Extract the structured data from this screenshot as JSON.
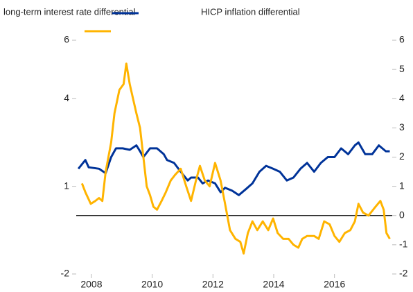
{
  "chart_data": {
    "type": "line",
    "legend_position": "top",
    "xlim": [
      2007.5,
      2017.9
    ],
    "xticks": [
      2008,
      2010,
      2012,
      2014,
      2016
    ],
    "ylim": [
      -2,
      6
    ],
    "yticks": [
      -2,
      1,
      4,
      6
    ],
    "y2lim": [
      -2,
      6
    ],
    "y2ticks": [
      -2,
      -1,
      0,
      1,
      2,
      3,
      4,
      5,
      6
    ],
    "series": [
      {
        "name": "long-term interest rate differential",
        "color": "#003399",
        "axis": "y",
        "x": [
          2007.57,
          2007.8,
          2007.91,
          2008.25,
          2008.47,
          2008.65,
          2008.81,
          2009.03,
          2009.26,
          2009.48,
          2009.6,
          2009.71,
          2009.93,
          2010.16,
          2010.38,
          2010.49,
          2010.72,
          2010.94,
          2011.17,
          2011.28,
          2011.51,
          2011.66,
          2011.84,
          2012.07,
          2012.25,
          2012.4,
          2012.63,
          2012.85,
          2013.08,
          2013.3,
          2013.53,
          2013.75,
          2013.98,
          2014.2,
          2014.43,
          2014.65,
          2014.88,
          2015.1,
          2015.33,
          2015.55,
          2015.78,
          2016.0,
          2016.22,
          2016.45,
          2016.67,
          2016.79,
          2017.01,
          2017.24,
          2017.46,
          2017.69,
          2017.82
        ],
        "values": [
          1.6,
          1.9,
          1.65,
          1.6,
          1.45,
          2.0,
          2.3,
          2.3,
          2.25,
          2.4,
          2.2,
          2.0,
          2.3,
          2.3,
          2.1,
          1.9,
          1.8,
          1.5,
          1.2,
          1.3,
          1.3,
          1.1,
          1.2,
          1.1,
          0.8,
          0.95,
          0.85,
          0.7,
          0.9,
          1.1,
          1.5,
          1.7,
          1.6,
          1.5,
          1.2,
          1.3,
          1.6,
          1.8,
          1.5,
          1.8,
          2.0,
          2.0,
          2.3,
          2.1,
          2.4,
          2.5,
          2.1,
          2.1,
          2.4,
          2.2,
          2.2
        ]
      },
      {
        "name": "HICP inflation differential",
        "color": "#ffb400",
        "axis": "y2",
        "x": [
          2007.69,
          2007.8,
          2007.98,
          2008.13,
          2008.25,
          2008.36,
          2008.47,
          2008.65,
          2008.76,
          2008.92,
          2009.06,
          2009.15,
          2009.26,
          2009.37,
          2009.48,
          2009.6,
          2009.71,
          2009.82,
          2009.93,
          2010.04,
          2010.16,
          2010.31,
          2010.45,
          2010.61,
          2010.76,
          2010.94,
          2011.12,
          2011.28,
          2011.44,
          2011.57,
          2011.73,
          2011.89,
          2012.07,
          2012.25,
          2012.4,
          2012.56,
          2012.74,
          2012.9,
          2013.01,
          2013.15,
          2013.3,
          2013.46,
          2013.64,
          2013.82,
          2013.98,
          2014.13,
          2014.31,
          2014.49,
          2014.65,
          2014.81,
          2014.94,
          2015.1,
          2015.33,
          2015.48,
          2015.66,
          2015.84,
          2016.0,
          2016.16,
          2016.34,
          2016.52,
          2016.67,
          2016.79,
          2016.94,
          2017.12,
          2017.35,
          2017.51,
          2017.62,
          2017.71,
          2017.82
        ],
        "values": [
          1.1,
          0.8,
          0.4,
          0.5,
          0.6,
          0.5,
          1.5,
          2.5,
          3.5,
          4.3,
          4.5,
          5.2,
          4.5,
          4.0,
          3.5,
          3.0,
          2.0,
          1.0,
          0.7,
          0.3,
          0.2,
          0.5,
          0.8,
          1.2,
          1.4,
          1.6,
          1.0,
          0.5,
          1.2,
          1.7,
          1.2,
          1.0,
          1.8,
          1.2,
          0.4,
          -0.5,
          -0.8,
          -0.9,
          -1.3,
          -0.6,
          -0.2,
          -0.5,
          -0.2,
          -0.5,
          -0.1,
          -0.6,
          -0.8,
          -0.8,
          -1.0,
          -1.1,
          -0.8,
          -0.7,
          -0.7,
          -0.8,
          -0.2,
          -0.3,
          -0.7,
          -0.9,
          -0.6,
          -0.5,
          -0.2,
          0.4,
          0.1,
          0.0,
          0.3,
          0.5,
          0.2,
          -0.6,
          -0.8
        ]
      }
    ]
  }
}
